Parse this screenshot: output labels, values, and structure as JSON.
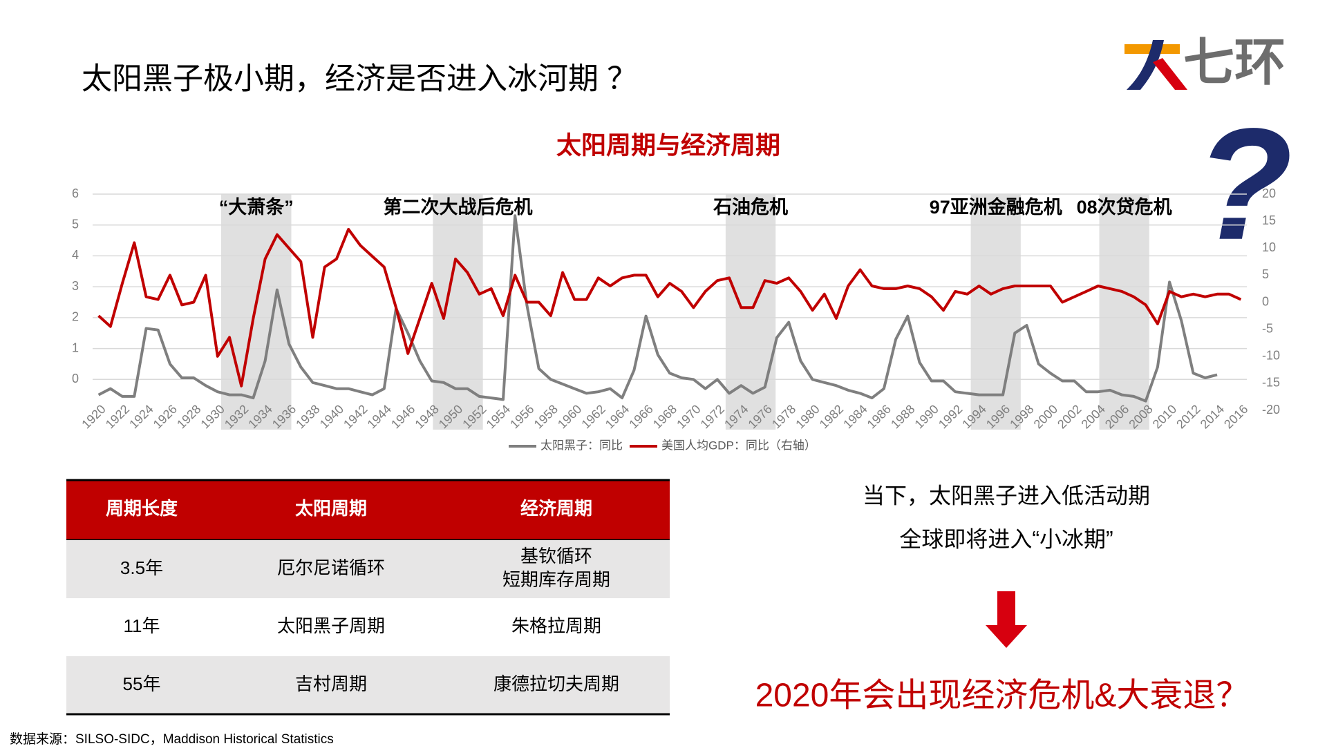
{
  "header": {
    "title": "太阳黑子极小期，经济是否进入冰河期 ？",
    "logo_text": "七环",
    "question_mark": "?"
  },
  "chart_data": {
    "type": "line",
    "title": "太阳周期与经济周期",
    "x": [
      1920,
      1921,
      1922,
      1923,
      1924,
      1925,
      1926,
      1927,
      1928,
      1929,
      1930,
      1931,
      1932,
      1933,
      1934,
      1935,
      1936,
      1937,
      1938,
      1939,
      1940,
      1941,
      1942,
      1943,
      1944,
      1945,
      1946,
      1947,
      1948,
      1949,
      1950,
      1951,
      1952,
      1953,
      1954,
      1955,
      1956,
      1957,
      1958,
      1959,
      1960,
      1961,
      1962,
      1963,
      1964,
      1965,
      1966,
      1967,
      1968,
      1969,
      1970,
      1971,
      1972,
      1973,
      1974,
      1975,
      1976,
      1977,
      1978,
      1979,
      1980,
      1981,
      1982,
      1983,
      1984,
      1985,
      1986,
      1987,
      1988,
      1989,
      1990,
      1991,
      1992,
      1993,
      1994,
      1995,
      1996,
      1997,
      1998,
      1999,
      2000,
      2001,
      2002,
      2003,
      2004,
      2005,
      2006,
      2007,
      2008,
      2009,
      2010,
      2011,
      2012,
      2013,
      2014,
      2015,
      2016
    ],
    "series": [
      {
        "name": "太阳黑子：同比",
        "color": "#7f7f7f",
        "values": [
          -0.5,
          -0.3,
          -0.55,
          -0.55,
          1.65,
          1.6,
          0.5,
          0.05,
          0.05,
          -0.2,
          -0.4,
          -0.5,
          -0.5,
          -0.6,
          0.6,
          2.9,
          1.15,
          0.4,
          -0.1,
          -0.2,
          -0.3,
          -0.3,
          -0.4,
          -0.5,
          -0.3,
          2.3,
          1.5,
          0.6,
          -0.05,
          -0.1,
          -0.3,
          -0.3,
          -0.55,
          -0.6,
          -0.65,
          5.3,
          2.4,
          0.35,
          0,
          -0.15,
          -0.3,
          -0.45,
          -0.4,
          -0.3,
          -0.6,
          0.3,
          2.05,
          0.8,
          0.2,
          0.05,
          0,
          -0.3,
          0,
          -0.45,
          -0.2,
          -0.45,
          -0.25,
          1.35,
          1.85,
          0.6,
          0,
          -0.1,
          -0.2,
          -0.35,
          -0.45,
          -0.6,
          -0.3,
          1.3,
          2.05,
          0.55,
          -0.05,
          -0.05,
          -0.4,
          -0.45,
          -0.5,
          -0.5,
          -0.5,
          1.5,
          1.75,
          0.5,
          0.2,
          -0.05,
          -0.05,
          -0.4,
          -0.4,
          -0.35,
          -0.5,
          -0.55,
          -0.7,
          0.4,
          3.15,
          1.9,
          0.2,
          0.05,
          0.15,
          null,
          null
        ]
      },
      {
        "name": "美国人均GDP：同比（右轴）",
        "color": "#c00000",
        "axis": "y2",
        "values": [
          -2.5,
          -4.5,
          3.5,
          11,
          1,
          0.5,
          5,
          -0.5,
          0,
          5,
          -10,
          -6.5,
          -15.5,
          -3,
          8,
          12.5,
          10,
          7.5,
          -6.5,
          6.5,
          8,
          13.5,
          10.5,
          8.5,
          6.5,
          -1,
          -9.5,
          -3,
          3.5,
          -3,
          8,
          5.5,
          1.5,
          2.5,
          -2.5,
          5,
          0,
          0,
          -2.5,
          5.5,
          0.5,
          0.5,
          4.5,
          3,
          4.5,
          5,
          5,
          1,
          3.5,
          2,
          -1,
          2,
          4,
          4.5,
          -1,
          -1,
          4,
          3.5,
          4.5,
          2,
          -1.5,
          1.5,
          -3,
          3,
          6,
          3,
          2.5,
          2.5,
          3,
          2.5,
          1,
          -1.5,
          2,
          1.5,
          3,
          1.5,
          2.5,
          3,
          3,
          3,
          3,
          0,
          1,
          2,
          3,
          2.5,
          2,
          1,
          -0.5,
          -4,
          2,
          1,
          1.5,
          1,
          1.5,
          1.5,
          0.5
        ]
      }
    ],
    "xlim": [
      1919.5,
      2016.5
    ],
    "xticks": [
      1920,
      1922,
      1924,
      1926,
      1928,
      1930,
      1932,
      1934,
      1936,
      1938,
      1940,
      1942,
      1944,
      1946,
      1948,
      1950,
      1952,
      1954,
      1956,
      1958,
      1960,
      1962,
      1964,
      1966,
      1968,
      1970,
      1972,
      1974,
      1976,
      1978,
      1980,
      1982,
      1984,
      1986,
      1988,
      1990,
      1992,
      1994,
      1996,
      1998,
      2000,
      2002,
      2004,
      2006,
      2008,
      2010,
      2012,
      2014,
      2016
    ],
    "ylim": [
      -1,
      6
    ],
    "yticks": [
      0,
      1,
      2,
      3,
      4,
      5,
      6
    ],
    "y2lim": [
      -20,
      20
    ],
    "y2ticks": [
      -20,
      -15,
      -10,
      -5,
      0,
      5,
      10,
      15,
      20
    ],
    "grid": true,
    "legend": "bottom",
    "annotations": [
      {
        "text": "“大萧条”",
        "x_range": [
          1930.3,
          1936.2
        ]
      },
      {
        "text": "第二次大战后危机",
        "x_range": [
          1948.1,
          1952.3
        ]
      },
      {
        "text": "石油危机",
        "x_range": [
          1972.7,
          1976.9
        ]
      },
      {
        "text": "97亚洲金融危机",
        "x_range": [
          1993.3,
          1997.5
        ]
      },
      {
        "text": "08次贷危机",
        "x_range": [
          2004.1,
          2008.3
        ]
      }
    ]
  },
  "table": {
    "header": [
      "周期长度",
      "太阳周期",
      "经济周期"
    ],
    "rows": [
      [
        "3.5年",
        "厄尔尼诺循环",
        [
          "基钦循环",
          "短期库存周期"
        ]
      ],
      [
        "11年",
        "太阳黑子周期",
        "朱格拉周期"
      ],
      [
        "55年",
        "吉村周期",
        "康德拉切夫周期"
      ]
    ]
  },
  "conclusion": {
    "lines": [
      "当下，太阳黑子进入低活动期",
      "全球即将进入“小冰期”"
    ],
    "headline": "2020年会出现经济危机&大衰退？"
  },
  "source": "数据来源：SILSO-SIDC，Maddison Historical Statistics"
}
